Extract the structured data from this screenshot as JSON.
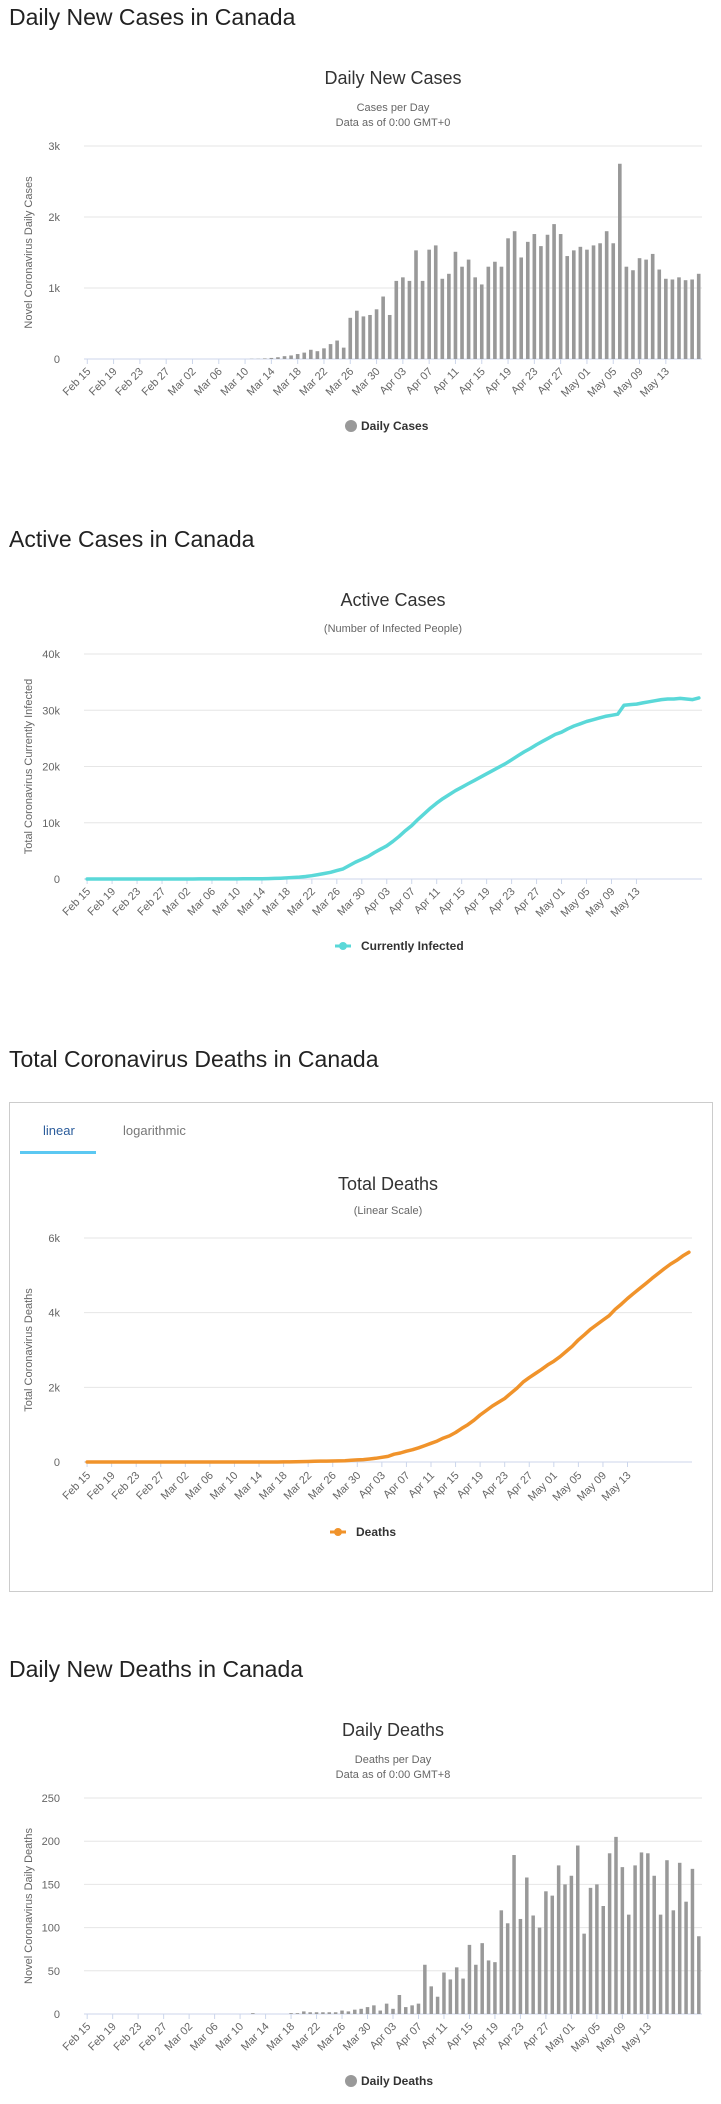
{
  "sections": [
    {
      "heading": "Daily New Cases in Canada"
    },
    {
      "heading": "Active Cases in Canada"
    },
    {
      "heading": "Total Coronavirus Deaths in Canada"
    },
    {
      "heading": "Daily New Deaths in Canada"
    }
  ],
  "tabs": [
    {
      "label": "linear"
    },
    {
      "label": "logarithmic"
    }
  ],
  "active_tab": "linear",
  "chart_data": [
    {
      "type": "bar",
      "title": "Daily New Cases",
      "subtitle": "Cases per Day",
      "subtitle2": "Data as of 0:00 GMT+0",
      "ylabel": "Novel Coronavirus Daily Cases",
      "ylim": [
        0,
        3000
      ],
      "yticks": [
        "0",
        "1k",
        "2k",
        "3k"
      ],
      "x_tick_labels": [
        "Feb 15",
        "Feb 19",
        "Feb 23",
        "Feb 27",
        "Mar 02",
        "Mar 06",
        "Mar 10",
        "Mar 14",
        "Mar 18",
        "Mar 22",
        "Mar 26",
        "Mar 30",
        "Apr 03",
        "Apr 07",
        "Apr 11",
        "Apr 15",
        "Apr 19",
        "Apr 23",
        "Apr 27",
        "May 01",
        "May 05",
        "May 09",
        "May 13"
      ],
      "x_start": "Feb 15",
      "series": [
        {
          "name": "Daily Cases",
          "color": "#999999",
          "values": [
            0,
            0,
            0,
            0,
            0,
            0,
            0,
            0,
            0,
            0,
            0,
            0,
            0,
            0,
            0,
            0,
            0,
            0,
            0,
            0,
            0,
            0,
            0,
            0,
            0,
            3,
            3,
            8,
            15,
            25,
            40,
            50,
            70,
            90,
            130,
            110,
            150,
            210,
            260,
            160,
            580,
            680,
            600,
            620,
            700,
            880,
            620,
            1100,
            1150,
            1100,
            1530,
            1100,
            1540,
            1600,
            1130,
            1200,
            1510,
            1300,
            1400,
            1150,
            1050,
            1300,
            1370,
            1300,
            1700,
            1800,
            1430,
            1650,
            1760,
            1590,
            1750,
            1900,
            1760,
            1450,
            1530,
            1580,
            1540,
            1600,
            1630,
            1800,
            1630,
            2750,
            1300,
            1250,
            1420,
            1400,
            1480,
            1260,
            1130,
            1120,
            1150,
            1110,
            1120,
            1200
          ]
        }
      ]
    },
    {
      "type": "line",
      "title": "Active Cases",
      "subtitle": "(Number of Infected People)",
      "ylabel": "Total Coronavirus Currently Infected",
      "ylim": [
        0,
        40000
      ],
      "yticks": [
        "0",
        "10k",
        "20k",
        "30k",
        "40k"
      ],
      "x_tick_labels": [
        "Feb 15",
        "Feb 19",
        "Feb 23",
        "Feb 27",
        "Mar 02",
        "Mar 06",
        "Mar 10",
        "Mar 14",
        "Mar 18",
        "Mar 22",
        "Mar 26",
        "Mar 30",
        "Apr 03",
        "Apr 07",
        "Apr 11",
        "Apr 15",
        "Apr 19",
        "Apr 23",
        "Apr 27",
        "May 01",
        "May 05",
        "May 09",
        "May 13"
      ],
      "x_start": "Feb 15",
      "series": [
        {
          "name": "Currently Infected",
          "color": "#5ad8d8",
          "values": [
            7,
            7,
            7,
            7,
            7,
            7,
            7,
            7,
            7,
            7,
            7,
            7,
            7,
            7,
            7,
            7,
            8,
            8,
            10,
            12,
            15,
            18,
            20,
            22,
            25,
            30,
            40,
            50,
            60,
            75,
            100,
            140,
            190,
            260,
            330,
            450,
            580,
            780,
            980,
            1200,
            1500,
            1800,
            2400,
            3000,
            3500,
            4000,
            4700,
            5300,
            5900,
            6700,
            7600,
            8600,
            9500,
            10600,
            11600,
            12600,
            13500,
            14300,
            15000,
            15700,
            16300,
            16900,
            17500,
            18100,
            18700,
            19300,
            19900,
            20500,
            21200,
            21900,
            22600,
            23200,
            23900,
            24500,
            25100,
            25700,
            26100,
            26700,
            27200,
            27600,
            28000,
            28300,
            28600,
            28900,
            29100,
            29300,
            30900,
            31000,
            31100,
            31300,
            31500,
            31700,
            31900,
            32000,
            32000,
            32100,
            32000,
            31900,
            32200
          ]
        }
      ]
    },
    {
      "type": "line",
      "title": "Total Deaths",
      "subtitle": "(Linear Scale)",
      "ylabel": "Total Coronavirus Deaths",
      "ylim": [
        0,
        6000
      ],
      "yticks": [
        "0",
        "2k",
        "4k",
        "6k"
      ],
      "x_tick_labels": [
        "Feb 15",
        "Feb 19",
        "Feb 23",
        "Feb 27",
        "Mar 02",
        "Mar 06",
        "Mar 10",
        "Mar 14",
        "Mar 18",
        "Mar 22",
        "Mar 26",
        "Mar 30",
        "Apr 03",
        "Apr 07",
        "Apr 11",
        "Apr 15",
        "Apr 19",
        "Apr 23",
        "Apr 27",
        "May 01",
        "May 05",
        "May 09",
        "May 13"
      ],
      "x_start": "Feb 15",
      "series": [
        {
          "name": "Deaths",
          "color": "#f0932b",
          "values": [
            0,
            0,
            0,
            0,
            0,
            0,
            0,
            0,
            0,
            0,
            0,
            0,
            0,
            0,
            0,
            0,
            0,
            0,
            0,
            0,
            0,
            0,
            0,
            0,
            0,
            0,
            1,
            1,
            1,
            1,
            1,
            1,
            2,
            4,
            8,
            10,
            13,
            19,
            24,
            25,
            27,
            30,
            35,
            45,
            55,
            65,
            80,
            100,
            125,
            150,
            210,
            240,
            290,
            330,
            380,
            440,
            500,
            560,
            640,
            700,
            790,
            900,
            1000,
            1120,
            1260,
            1380,
            1500,
            1600,
            1700,
            1840,
            1980,
            2140,
            2260,
            2370,
            2480,
            2600,
            2700,
            2820,
            2960,
            3100,
            3270,
            3410,
            3560,
            3680,
            3800,
            3920,
            4090,
            4230,
            4380,
            4520,
            4650,
            4780,
            4920,
            5050,
            5180,
            5300,
            5400,
            5520,
            5620
          ]
        }
      ]
    },
    {
      "type": "bar",
      "title": "Daily Deaths",
      "subtitle": "Deaths per Day",
      "subtitle2": "Data as of 0:00 GMT+8",
      "ylabel": "Novel Coronavirus Daily Deaths",
      "ylim": [
        0,
        250
      ],
      "yticks": [
        "0",
        "50",
        "100",
        "150",
        "200",
        "250"
      ],
      "x_tick_labels": [
        "Feb 15",
        "Feb 19",
        "Feb 23",
        "Feb 27",
        "Mar 02",
        "Mar 06",
        "Mar 10",
        "Mar 14",
        "Mar 18",
        "Mar 22",
        "Mar 26",
        "Mar 30",
        "Apr 03",
        "Apr 07",
        "Apr 11",
        "Apr 15",
        "Apr 19",
        "Apr 23",
        "Apr 27",
        "May 01",
        "May 05",
        "May 09",
        "May 13"
      ],
      "x_start": "Feb 15",
      "series": [
        {
          "name": "Daily Deaths",
          "color": "#999999",
          "values": [
            0,
            0,
            0,
            0,
            0,
            0,
            0,
            0,
            0,
            0,
            0,
            0,
            0,
            0,
            0,
            0,
            0,
            0,
            0,
            0,
            0,
            0,
            0,
            0,
            0,
            0,
            1,
            0,
            0,
            0,
            0,
            0,
            1,
            1,
            3,
            2,
            2,
            2,
            2,
            2,
            4,
            3,
            5,
            6,
            8,
            10,
            4,
            12,
            6,
            22,
            8,
            10,
            12,
            57,
            32,
            20,
            48,
            40,
            54,
            41,
            80,
            57,
            82,
            62,
            60,
            120,
            105,
            184,
            110,
            158,
            114,
            100,
            142,
            137,
            172,
            150,
            160,
            195,
            93,
            146,
            150,
            125,
            186,
            205,
            170,
            115,
            172,
            187,
            186,
            160,
            115,
            178,
            120,
            175,
            130,
            168,
            90
          ]
        }
      ]
    }
  ]
}
